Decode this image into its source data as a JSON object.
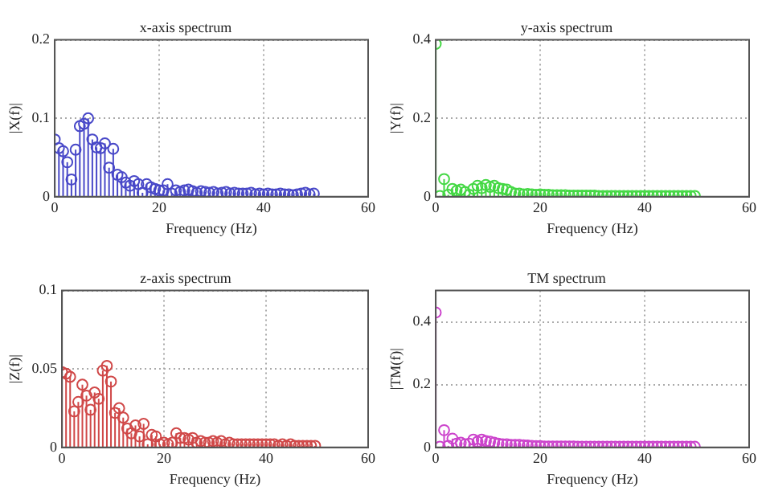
{
  "chart_data": [
    {
      "type": "lollipop",
      "title": "x-axis spectrum",
      "xlabel": "Frequency (Hz)",
      "ylabel": "|X(f)|",
      "marker": "circle",
      "grid": true,
      "xlim": [
        0,
        60
      ],
      "xticks": [
        0,
        20,
        40,
        60
      ],
      "ylim": [
        0,
        0.2
      ],
      "yticks": [
        0,
        0.1,
        0.2
      ],
      "x": [
        0,
        0.8,
        1.6,
        2.4,
        3.2,
        4,
        4.8,
        5.6,
        6.4,
        7.2,
        8,
        8.8,
        9.6,
        10.4,
        11.2,
        12,
        12.8,
        13.6,
        14.4,
        15.2,
        16,
        16.8,
        17.6,
        18.4,
        19.2,
        20,
        20.8,
        21.6,
        22.4,
        23.2,
        24,
        24.8,
        25.6,
        26.4,
        27.2,
        28,
        28.8,
        29.6,
        30.4,
        31.2,
        32,
        32.8,
        33.6,
        34.4,
        35.2,
        36,
        36.8,
        37.6,
        38.4,
        39.2,
        40,
        40.8,
        41.6,
        42.4,
        43.2,
        44,
        44.8,
        45.6,
        46.4,
        47.2,
        48,
        48.8,
        49.6
      ],
      "series": [
        {
          "color": "#4848c8",
          "values": [
            0.073,
            0.062,
            0.058,
            0.044,
            0.022,
            0.06,
            0.09,
            0.093,
            0.1,
            0.073,
            0.063,
            0.062,
            0.068,
            0.037,
            0.061,
            0.028,
            0.025,
            0.018,
            0.014,
            0.02,
            0.016,
            0.005,
            0.016,
            0.012,
            0.01,
            0.008,
            0.008,
            0.016,
            0.004,
            0.008,
            0.006,
            0.008,
            0.009,
            0.007,
            0.005,
            0.007,
            0.006,
            0.005,
            0.006,
            0.004,
            0.005,
            0.006,
            0.004,
            0.005,
            0.004,
            0.004,
            0.004,
            0.005,
            0.003,
            0.004,
            0.003,
            0.004,
            0.003,
            0.003,
            0.004,
            0.003,
            0.003,
            0.002,
            0.003,
            0.004,
            0.005,
            0.003,
            0.004
          ]
        }
      ]
    },
    {
      "type": "lollipop",
      "title": "y-axis spectrum",
      "xlabel": "Frequency (Hz)",
      "ylabel": "|Y(f)|",
      "marker": "circle",
      "grid": true,
      "xlim": [
        0,
        60
      ],
      "xticks": [
        0,
        20,
        40,
        60
      ],
      "ylim": [
        0,
        0.4
      ],
      "yticks": [
        0,
        0.2,
        0.4
      ],
      "x": [
        0,
        0.8,
        1.6,
        2.4,
        3.2,
        4,
        4.8,
        5.6,
        6.4,
        7.2,
        8,
        8.8,
        9.6,
        10.4,
        11.2,
        12,
        12.8,
        13.6,
        14.4,
        15.2,
        16,
        16.8,
        17.6,
        18.4,
        19.2,
        20,
        20.8,
        21.6,
        22.4,
        23.2,
        24,
        24.8,
        25.6,
        26.4,
        27.2,
        28,
        28.8,
        29.6,
        30.4,
        31.2,
        32,
        32.8,
        33.6,
        34.4,
        35.2,
        36,
        36.8,
        37.6,
        38.4,
        39.2,
        40,
        40.8,
        41.6,
        42.4,
        43.2,
        44,
        44.8,
        45.6,
        46.4,
        47.2,
        48,
        48.8,
        49.6
      ],
      "series": [
        {
          "color": "#44d844",
          "values": [
            0.39,
            0.002,
            0.045,
            0.005,
            0.02,
            0.015,
            0.018,
            0.012,
            0.005,
            0.02,
            0.028,
            0.022,
            0.03,
            0.025,
            0.028,
            0.022,
            0.02,
            0.018,
            0.012,
            0.008,
            0.008,
            0.006,
            0.007,
            0.006,
            0.005,
            0.006,
            0.005,
            0.005,
            0.004,
            0.004,
            0.004,
            0.004,
            0.003,
            0.003,
            0.003,
            0.003,
            0.003,
            0.003,
            0.003,
            0.002,
            0.002,
            0.002,
            0.002,
            0.002,
            0.002,
            0.002,
            0.002,
            0.002,
            0.002,
            0.002,
            0.002,
            0.002,
            0.002,
            0.002,
            0.002,
            0.002,
            0.002,
            0.002,
            0.002,
            0.002,
            0.002,
            0.002,
            0.002
          ]
        }
      ]
    },
    {
      "type": "lollipop",
      "title": "z-axis spectrum",
      "xlabel": "Frequency (Hz)",
      "ylabel": "|Z(f)|",
      "marker": "circle",
      "grid": true,
      "xlim": [
        0,
        60
      ],
      "xticks": [
        0,
        20,
        40,
        60
      ],
      "ylim": [
        0,
        0.1
      ],
      "yticks": [
        0,
        0.05,
        0.1
      ],
      "x": [
        0,
        0.8,
        1.6,
        2.4,
        3.2,
        4,
        4.8,
        5.6,
        6.4,
        7.2,
        8,
        8.8,
        9.6,
        10.4,
        11.2,
        12,
        12.8,
        13.6,
        14.4,
        15.2,
        16,
        16.8,
        17.6,
        18.4,
        19.2,
        20,
        20.8,
        21.6,
        22.4,
        23.2,
        24,
        24.8,
        25.6,
        26.4,
        27.2,
        28,
        28.8,
        29.6,
        30.4,
        31.2,
        32,
        32.8,
        33.6,
        34.4,
        35.2,
        36,
        36.8,
        37.6,
        38.4,
        39.2,
        40,
        40.8,
        41.6,
        42.4,
        43.2,
        44,
        44.8,
        45.6,
        46.4,
        47.2,
        48,
        48.8,
        49.6
      ],
      "series": [
        {
          "color": "#d04848",
          "values": [
            0.048,
            0.047,
            0.045,
            0.023,
            0.029,
            0.04,
            0.033,
            0.024,
            0.035,
            0.031,
            0.049,
            0.052,
            0.042,
            0.022,
            0.025,
            0.019,
            0.012,
            0.009,
            0.014,
            0.007,
            0.015,
            0.002,
            0.008,
            0.007,
            0.002,
            0.003,
            0.002,
            0.003,
            0.009,
            0.006,
            0.006,
            0.005,
            0.006,
            0.003,
            0.004,
            0.003,
            0.003,
            0.004,
            0.003,
            0.004,
            0.002,
            0.003,
            0.002,
            0.002,
            0.002,
            0.002,
            0.002,
            0.002,
            0.002,
            0.002,
            0.002,
            0.002,
            0.002,
            0.001,
            0.002,
            0.001,
            0.002,
            0.001,
            0.001,
            0.001,
            0.001,
            0.001,
            0.001
          ]
        }
      ]
    },
    {
      "type": "lollipop",
      "title": "TM spectrum",
      "xlabel": "Frequency (Hz)",
      "ylabel": "|TM(f)|",
      "marker": "circle",
      "grid": true,
      "xlim": [
        0,
        60
      ],
      "xticks": [
        0,
        20,
        40,
        60
      ],
      "ylim": [
        0,
        0.5
      ],
      "yticks": [
        0,
        0.2,
        0.4
      ],
      "x": [
        0,
        0.8,
        1.6,
        2.4,
        3.2,
        4,
        4.8,
        5.6,
        6.4,
        7.2,
        8,
        8.8,
        9.6,
        10.4,
        11.2,
        12,
        12.8,
        13.6,
        14.4,
        15.2,
        16,
        16.8,
        17.6,
        18.4,
        19.2,
        20,
        20.8,
        21.6,
        22.4,
        23.2,
        24,
        24.8,
        25.6,
        26.4,
        27.2,
        28,
        28.8,
        29.6,
        30.4,
        31.2,
        32,
        32.8,
        33.6,
        34.4,
        35.2,
        36,
        36.8,
        37.6,
        38.4,
        39.2,
        40,
        40.8,
        41.6,
        42.4,
        43.2,
        44,
        44.8,
        45.6,
        46.4,
        47.2,
        48,
        48.8,
        49.6
      ],
      "series": [
        {
          "color": "#cc44cc",
          "values": [
            0.43,
            0.002,
            0.055,
            0.005,
            0.028,
            0.012,
            0.015,
            0.01,
            0.012,
            0.025,
            0.018,
            0.025,
            0.02,
            0.018,
            0.015,
            0.012,
            0.01,
            0.01,
            0.008,
            0.008,
            0.008,
            0.007,
            0.006,
            0.005,
            0.004,
            0.004,
            0.003,
            0.003,
            0.003,
            0.003,
            0.003,
            0.003,
            0.003,
            0.003,
            0.002,
            0.002,
            0.002,
            0.002,
            0.002,
            0.002,
            0.002,
            0.002,
            0.002,
            0.002,
            0.002,
            0.002,
            0.002,
            0.002,
            0.002,
            0.002,
            0.002,
            0.002,
            0.002,
            0.002,
            0.002,
            0.002,
            0.002,
            0.002,
            0.002,
            0.002,
            0.002,
            0.002,
            0.002
          ]
        }
      ]
    }
  ]
}
